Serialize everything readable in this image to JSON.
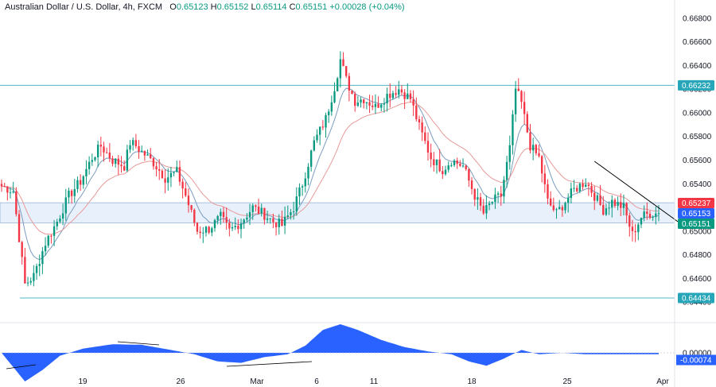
{
  "header": {
    "title": "Australian Dollar / U.S. Dollar, 4h, FXCM",
    "o_label": "O",
    "o_value": "0.65123",
    "h_label": "H",
    "h_value": "0.65152",
    "l_label": "L",
    "l_value": "0.65114",
    "c_label": "C",
    "c_value": "0.65151",
    "change": "+0.00028 (+0.04%)"
  },
  "colors": {
    "up": "#089981",
    "down": "#f23645",
    "level_line": "#4fb8c7",
    "zone_fill": "#e8f1fb",
    "zone_border": "#7a9cc6",
    "ma_fast": "#7b9cbf",
    "ma_slow": "#e89a9a",
    "trendline": "#000000",
    "oscillator": "#2962ff"
  },
  "chart_data": {
    "type": "candlestick",
    "instrument": "AUDUSD",
    "timeframe": "4h",
    "y_ticks": [
      "0.66800",
      "0.66600",
      "0.66400",
      "0.66200",
      "0.66000",
      "0.65800",
      "0.65600",
      "0.65400",
      "0.65200",
      "0.65000",
      "0.64800",
      "0.64600",
      "0.64400"
    ],
    "y_tick_values": [
      0.668,
      0.666,
      0.664,
      0.662,
      0.66,
      0.658,
      0.656,
      0.654,
      0.652,
      0.65,
      0.648,
      0.646,
      0.644
    ],
    "ylim": [
      0.643,
      0.669
    ],
    "x_ticks": [
      "19",
      "26",
      "Mar",
      "6",
      "11",
      "18",
      "25",
      "Apr"
    ],
    "price_tags": [
      {
        "label": "0.66232",
        "value": 0.66232,
        "color": "#26a6b8"
      },
      {
        "label": "0.65237",
        "value": 0.65237,
        "color": "#f23645"
      },
      {
        "label": "0.65153",
        "value": 0.65153,
        "color": "#2962ff"
      },
      {
        "label": "0.65151",
        "value": 0.65151,
        "color": "#089981"
      },
      {
        "label": "0.64434",
        "value": 0.64434,
        "color": "#26a6b8"
      }
    ],
    "levels": [
      0.66232,
      0.64434
    ],
    "zone": [
      0.6507,
      0.6524
    ],
    "waypoints": [
      [
        0,
        0.6538
      ],
      [
        4,
        0.6534
      ],
      [
        8,
        0.6455
      ],
      [
        11,
        0.6462
      ],
      [
        15,
        0.649
      ],
      [
        19,
        0.6508
      ],
      [
        23,
        0.653
      ],
      [
        27,
        0.6542
      ],
      [
        31,
        0.6562
      ],
      [
        34,
        0.6572
      ],
      [
        38,
        0.656
      ],
      [
        42,
        0.6555
      ],
      [
        44,
        0.6575
      ],
      [
        46,
        0.6572
      ],
      [
        48,
        0.6567
      ],
      [
        52,
        0.6558
      ],
      [
        56,
        0.6545
      ],
      [
        60,
        0.655
      ],
      [
        63,
        0.653
      ],
      [
        67,
        0.65
      ],
      [
        71,
        0.6502
      ],
      [
        75,
        0.6512
      ],
      [
        78,
        0.65
      ],
      [
        82,
        0.6508
      ],
      [
        86,
        0.652
      ],
      [
        90,
        0.6514
      ],
      [
        93,
        0.6508
      ],
      [
        96,
        0.6505
      ],
      [
        100,
        0.652
      ],
      [
        103,
        0.654
      ],
      [
        107,
        0.6575
      ],
      [
        111,
        0.6595
      ],
      [
        114,
        0.6622
      ],
      [
        116,
        0.6645
      ],
      [
        118,
        0.6628
      ],
      [
        121,
        0.661
      ],
      [
        124,
        0.6612
      ],
      [
        128,
        0.6605
      ],
      [
        132,
        0.6615
      ],
      [
        136,
        0.662
      ],
      [
        140,
        0.6612
      ],
      [
        143,
        0.6588
      ],
      [
        147,
        0.6562
      ],
      [
        151,
        0.6552
      ],
      [
        154,
        0.656
      ],
      [
        158,
        0.6555
      ],
      [
        162,
        0.653
      ],
      [
        165,
        0.6515
      ],
      [
        168,
        0.6525
      ],
      [
        171,
        0.653
      ],
      [
        174,
        0.657
      ],
      [
        176,
        0.662
      ],
      [
        178,
        0.6608
      ],
      [
        181,
        0.6572
      ],
      [
        184,
        0.6562
      ],
      [
        187,
        0.6525
      ],
      [
        190,
        0.6515
      ],
      [
        193,
        0.6525
      ],
      [
        196,
        0.6535
      ],
      [
        200,
        0.6542
      ],
      [
        203,
        0.653
      ],
      [
        206,
        0.6518
      ],
      [
        209,
        0.6525
      ],
      [
        213,
        0.652
      ],
      [
        216,
        0.6497
      ],
      [
        219,
        0.6512
      ],
      [
        222,
        0.6515
      ],
      [
        225,
        0.65151
      ]
    ],
    "candle_count": 226,
    "oscillator": {
      "waypoints": [
        [
          0,
          0.0
        ],
        [
          8,
          -1.0
        ],
        [
          14,
          -0.6
        ],
        [
          20,
          -0.1
        ],
        [
          28,
          0.15
        ],
        [
          38,
          0.3
        ],
        [
          48,
          0.28
        ],
        [
          58,
          0.1
        ],
        [
          66,
          -0.05
        ],
        [
          74,
          -0.3
        ],
        [
          82,
          -0.35
        ],
        [
          90,
          -0.15
        ],
        [
          98,
          -0.05
        ],
        [
          104,
          0.25
        ],
        [
          110,
          0.8
        ],
        [
          116,
          1.0
        ],
        [
          122,
          0.8
        ],
        [
          130,
          0.45
        ],
        [
          138,
          0.2
        ],
        [
          146,
          0.05
        ],
        [
          154,
          -0.05
        ],
        [
          160,
          -0.3
        ],
        [
          166,
          -0.45
        ],
        [
          172,
          -0.2
        ],
        [
          178,
          0.1
        ],
        [
          184,
          -0.05
        ],
        [
          192,
          0.0
        ],
        [
          200,
          -0.05
        ],
        [
          210,
          -0.05
        ],
        [
          225,
          -0.05
        ]
      ],
      "labels": [
        "0.00000",
        "-0.00074"
      ]
    }
  }
}
